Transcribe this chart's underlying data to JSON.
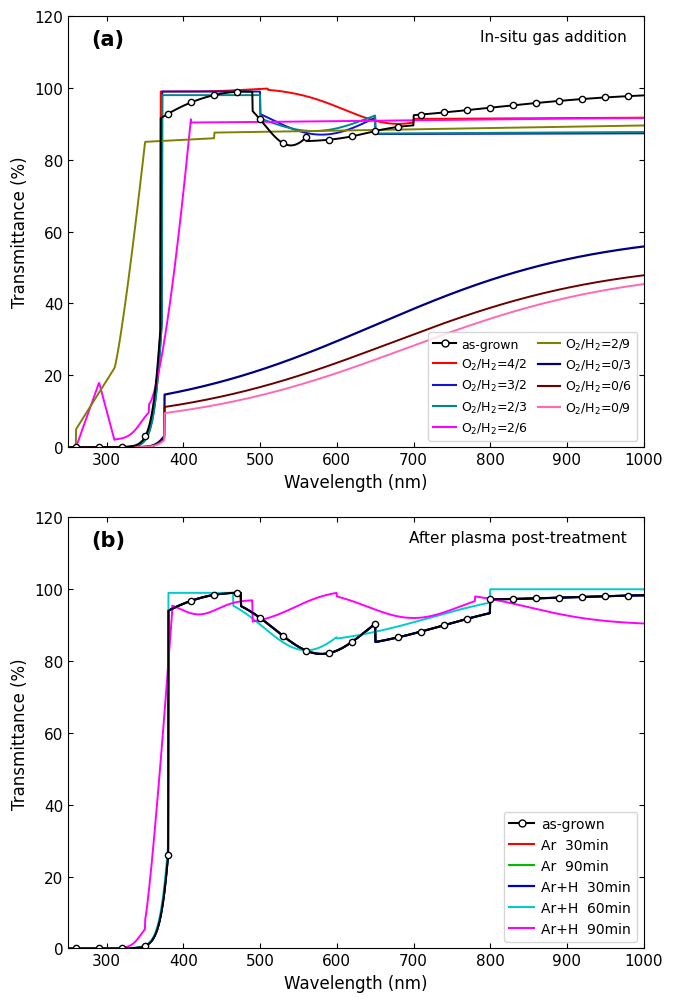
{
  "panel_a": {
    "title": "In-situ gas addition",
    "label": "(a)",
    "xlabel": "Wavelength (nm)",
    "ylabel": "Transmittance (%)",
    "xlim": [
      250,
      1000
    ],
    "ylim": [
      0,
      120
    ],
    "yticks": [
      0,
      20,
      40,
      60,
      80,
      100,
      120
    ],
    "colors": {
      "as_grown": "#000000",
      "O2H2_4_2": "#ff0000",
      "O2H2_3_2": "#1414cc",
      "O2H2_2_3": "#008888",
      "O2H2_2_6": "#ff00ff",
      "O2H2_2_9": "#808000",
      "O2H2_0_3": "#000080",
      "O2H2_0_6": "#6b0000",
      "O2H2_0_9": "#ff69b4"
    },
    "labels": {
      "as_grown": "as-grown",
      "O2H2_4_2": "O$_2$/H$_2$=4/2",
      "O2H2_3_2": "O$_2$/H$_2$=3/2",
      "O2H2_2_3": "O$_2$/H$_2$=2/3",
      "O2H2_2_6": "O$_2$/H$_2$=2/6",
      "O2H2_2_9": "O$_2$/H$_2$=2/9",
      "O2H2_0_3": "O$_2$/H$_2$=0/3",
      "O2H2_0_6": "O$_2$/H$_2$=0/6",
      "O2H2_0_9": "O$_2$/H$_2$=0/9"
    }
  },
  "panel_b": {
    "title": "After plasma post-treatment",
    "label": "(b)",
    "xlabel": "Wavelength (nm)",
    "ylabel": "Transmittance (%)",
    "xlim": [
      250,
      1000
    ],
    "ylim": [
      0,
      120
    ],
    "yticks": [
      0,
      20,
      40,
      60,
      80,
      100,
      120
    ],
    "colors": {
      "as_grown": "#000000",
      "Ar_30": "#ff0000",
      "Ar_90": "#00bb00",
      "ArH_30": "#0000cc",
      "ArH_60": "#00cccc",
      "ArH_90": "#ff00ff"
    },
    "labels": {
      "as_grown": "as-grown",
      "Ar_30": "Ar  30min",
      "Ar_90": "Ar  90min",
      "ArH_30": "Ar+H  30min",
      "ArH_60": "Ar+H  60min",
      "ArH_90": "Ar+H  90min"
    }
  }
}
